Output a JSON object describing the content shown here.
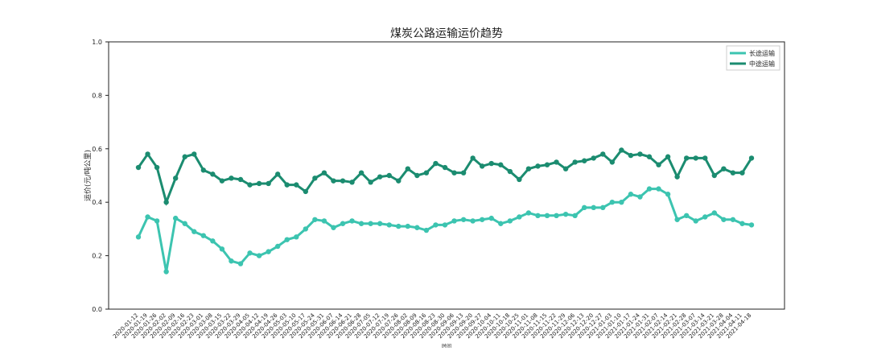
{
  "chart_data": {
    "type": "line",
    "title": "煤炭公路运输运价趋势",
    "ylabel": "运价(元/吨公里)",
    "xlabel": "时间",
    "categories": [
      "2020-01-12",
      "2020-01-19",
      "2020-01-26",
      "2020-02-02",
      "2020-02-09",
      "2020-02-16",
      "2020-02-23",
      "2020-03-01",
      "2020-03-08",
      "2020-03-15",
      "2020-03-22",
      "2020-03-29",
      "2020-04-05",
      "2020-04-12",
      "2020-04-19",
      "2020-04-26",
      "2020-05-03",
      "2020-05-10",
      "2020-05-17",
      "2020-05-24",
      "2020-05-31",
      "2020-06-07",
      "2020-06-14",
      "2020-06-21",
      "2020-06-28",
      "2020-07-05",
      "2020-07-12",
      "2020-07-19",
      "2020-07-26",
      "2020-08-02",
      "2020-08-09",
      "2020-08-16",
      "2020-08-23",
      "2020-08-30",
      "2020-09-06",
      "2020-09-13",
      "2020-09-20",
      "2020-09-27",
      "2020-10-04",
      "2020-10-11",
      "2020-10-18",
      "2020-10-25",
      "2020-11-01",
      "2020-11-08",
      "2020-11-15",
      "2020-11-22",
      "2020-11-29",
      "2020-12-06",
      "2020-12-13",
      "2020-12-20",
      "2020-12-27",
      "2021-01-03",
      "2021-01-10",
      "2021-01-17",
      "2021-01-24",
      "2021-01-31",
      "2021-02-07",
      "2021-02-14",
      "2021-02-21",
      "2021-02-28",
      "2021-03-07",
      "2021-03-14",
      "2021-03-21",
      "2021-03-28",
      "2021-04-04",
      "2021-04-11",
      "2021-04-18"
    ],
    "series": [
      {
        "name": "长途运输",
        "color": "#3cc4b0",
        "values": [
          0.27,
          0.345,
          0.33,
          0.14,
          0.34,
          0.32,
          0.29,
          0.275,
          0.255,
          0.225,
          0.18,
          0.17,
          0.21,
          0.2,
          0.215,
          0.235,
          0.26,
          0.27,
          0.3,
          0.335,
          0.33,
          0.305,
          0.32,
          0.33,
          0.32,
          0.32,
          0.32,
          0.315,
          0.31,
          0.31,
          0.305,
          0.295,
          0.315,
          0.315,
          0.33,
          0.335,
          0.33,
          0.335,
          0.34,
          0.32,
          0.33,
          0.345,
          0.36,
          0.35,
          0.35,
          0.35,
          0.355,
          0.35,
          0.38,
          0.38,
          0.38,
          0.4,
          0.4,
          0.43,
          0.42,
          0.45,
          0.45,
          0.43,
          0.335,
          0.35,
          0.33,
          0.345,
          0.36,
          0.335,
          0.335,
          0.32,
          0.315
        ]
      },
      {
        "name": "中途运输",
        "color": "#1b8c70",
        "values": [
          0.53,
          0.58,
          0.53,
          0.4,
          0.49,
          0.57,
          0.58,
          0.52,
          0.505,
          0.48,
          0.49,
          0.485,
          0.465,
          0.47,
          0.47,
          0.505,
          0.465,
          0.465,
          0.44,
          0.49,
          0.51,
          0.48,
          0.48,
          0.475,
          0.51,
          0.475,
          0.495,
          0.5,
          0.48,
          0.525,
          0.5,
          0.51,
          0.545,
          0.53,
          0.51,
          0.51,
          0.565,
          0.535,
          0.545,
          0.54,
          0.515,
          0.485,
          0.525,
          0.535,
          0.54,
          0.55,
          0.525,
          0.55,
          0.555,
          0.565,
          0.58,
          0.55,
          0.595,
          0.575,
          0.58,
          0.57,
          0.54,
          0.57,
          0.495,
          0.565,
          0.565,
          0.565,
          0.5,
          0.525,
          0.51,
          0.51,
          0.565
        ]
      }
    ],
    "ylim": [
      0,
      1
    ],
    "yticks": [
      {
        "value": 0,
        "label": "0.0"
      },
      0.2,
      0.4,
      0.6,
      0.8,
      {
        "value": 1,
        "label": "1.0"
      }
    ],
    "legend": "upper right"
  }
}
